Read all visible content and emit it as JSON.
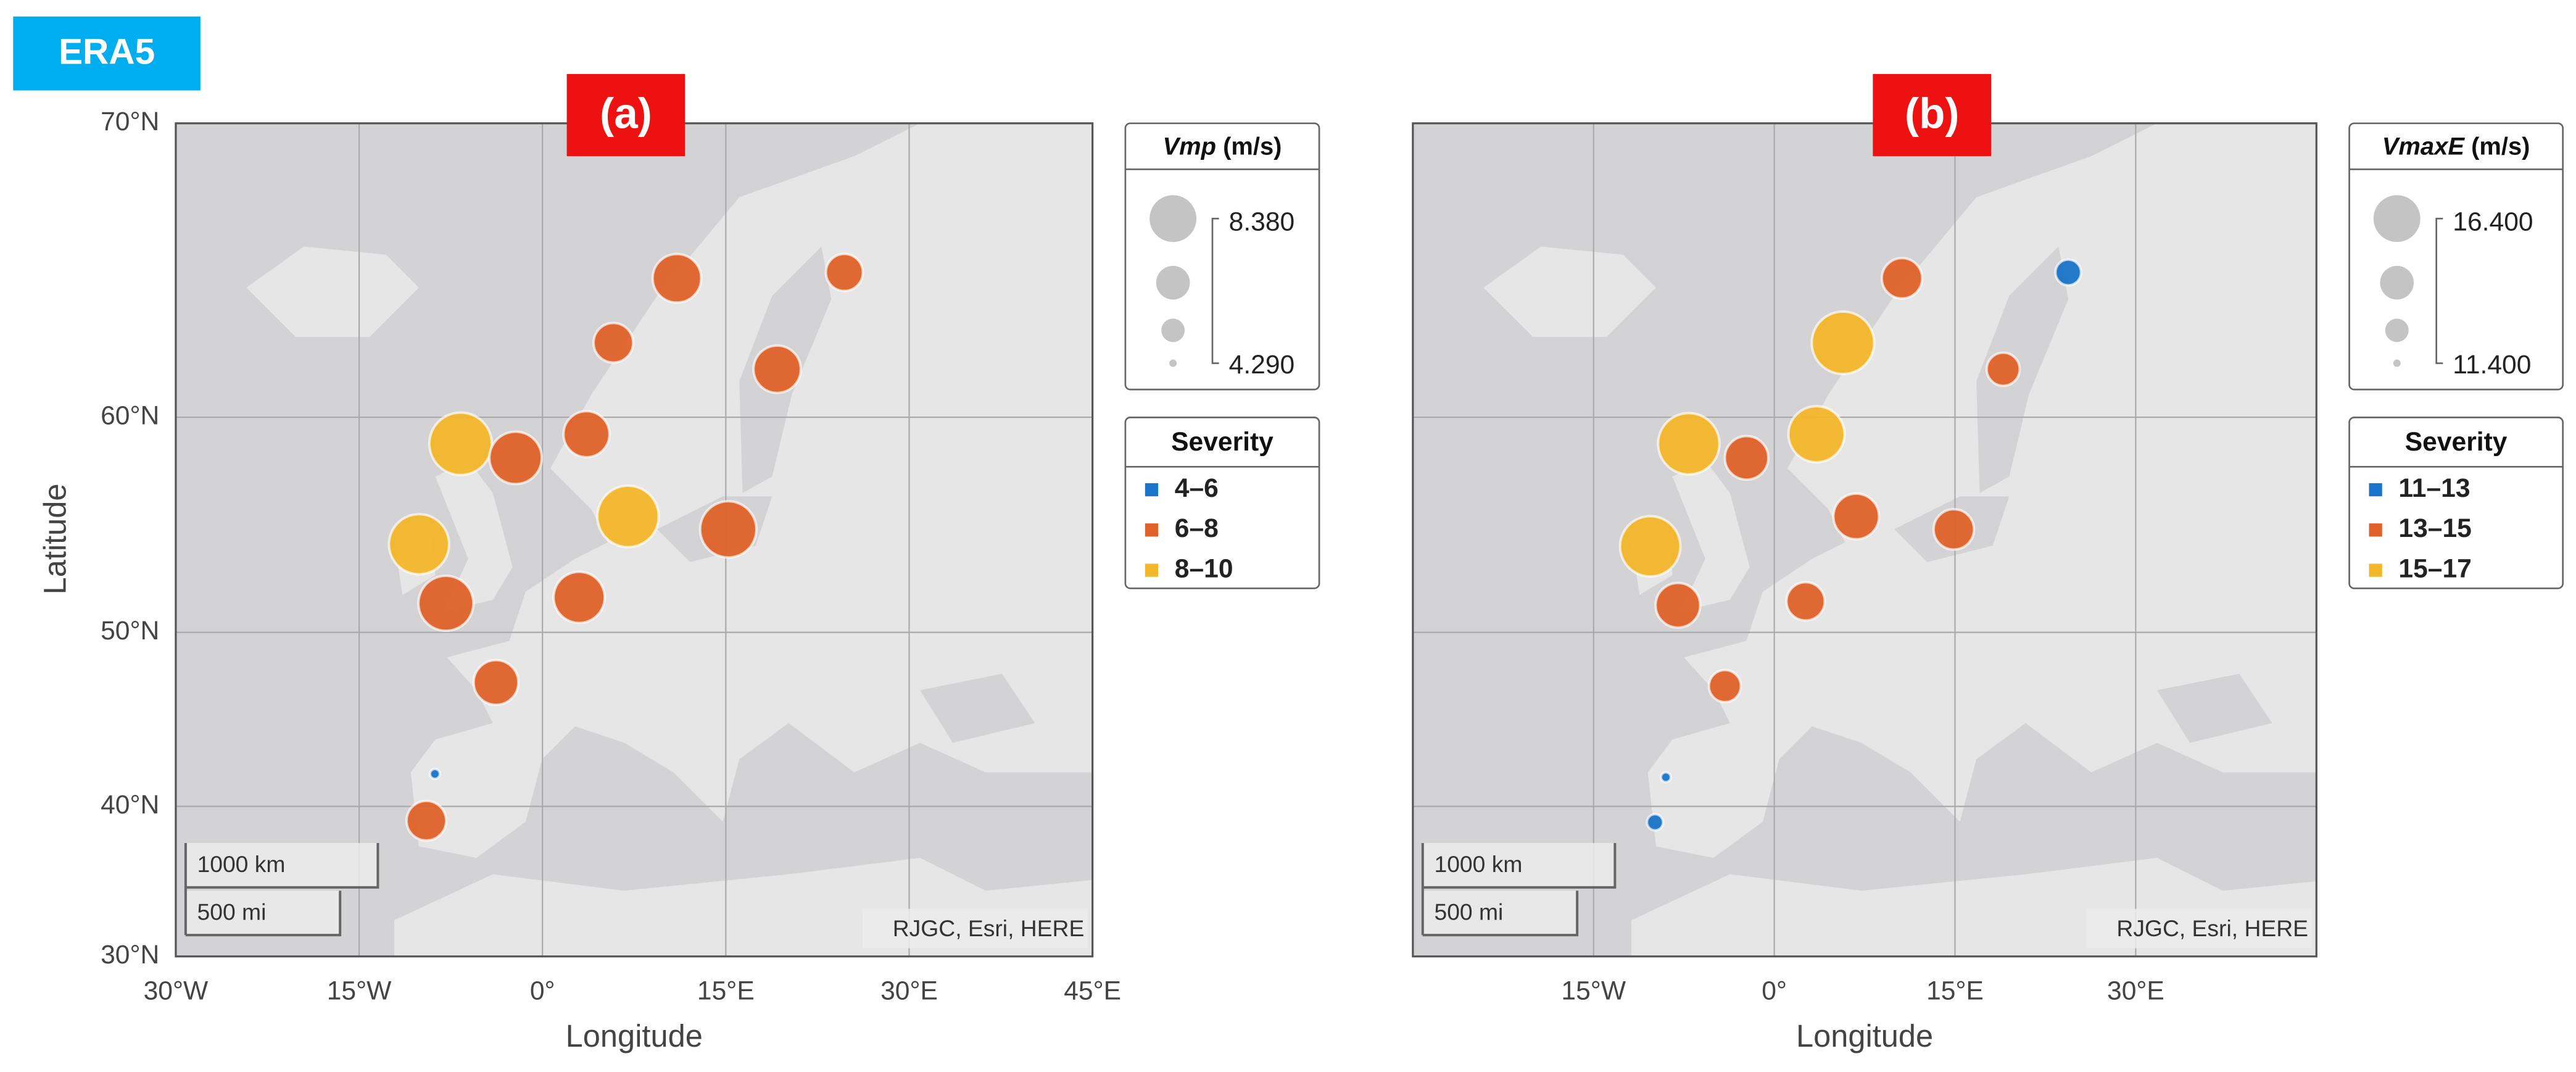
{
  "badge": "ERA5",
  "maps": [
    {
      "panel_label": "(a)",
      "xlabel": "Longitude",
      "ylabel": "Latitude",
      "xlim": [
        -30,
        45
      ],
      "ylim": [
        30,
        70
      ],
      "xticks": [
        {
          "value": -30,
          "label": "30°W"
        },
        {
          "value": -15,
          "label": "15°W"
        },
        {
          "value": 0,
          "label": "0°"
        },
        {
          "value": 15,
          "label": "15°E"
        },
        {
          "value": 30,
          "label": "30°E"
        },
        {
          "value": 45,
          "label": "45°E"
        }
      ],
      "yticks": [
        {
          "value": 30,
          "label": "30°N"
        },
        {
          "value": 40,
          "label": "40°N"
        },
        {
          "value": 50,
          "label": "50°N"
        },
        {
          "value": 60,
          "label": "60°N"
        },
        {
          "value": 70,
          "label": "70°N"
        }
      ],
      "size_legend": {
        "title": "Vmp",
        "unit": "(m/s)",
        "max": 8.38,
        "max_label": "8.380",
        "min": 4.29,
        "min_label": "4.290"
      },
      "severity_legend": {
        "title": "Severity",
        "classes": [
          {
            "label": "4–6",
            "color": "#1a75c8"
          },
          {
            "label": "6–8",
            "color": "#e0622a"
          },
          {
            "label": "8–10",
            "color": "#f4b72b"
          }
        ]
      },
      "points": [
        {
          "lon": 11.0,
          "lat": 65.2,
          "value": 7.3,
          "color": "#e0622a"
        },
        {
          "lon": 24.7,
          "lat": 65.4,
          "value": 6.4,
          "color": "#e0622a"
        },
        {
          "lon": 5.8,
          "lat": 62.9,
          "value": 6.6,
          "color": "#e0622a"
        },
        {
          "lon": 19.2,
          "lat": 61.9,
          "value": 7.2,
          "color": "#e0622a"
        },
        {
          "lon": -6.7,
          "lat": 58.9,
          "value": 8.38,
          "color": "#f4b72b"
        },
        {
          "lon": -2.2,
          "lat": 58.3,
          "value": 7.6,
          "color": "#e0622a"
        },
        {
          "lon": 3.6,
          "lat": 59.3,
          "value": 7.1,
          "color": "#e0622a"
        },
        {
          "lon": 7.0,
          "lat": 55.7,
          "value": 8.3,
          "color": "#f4b72b"
        },
        {
          "lon": 15.2,
          "lat": 55.1,
          "value": 7.9,
          "color": "#e0622a"
        },
        {
          "lon": -10.1,
          "lat": 54.4,
          "value": 8.2,
          "color": "#f4b72b"
        },
        {
          "lon": -7.9,
          "lat": 51.5,
          "value": 7.8,
          "color": "#e0622a"
        },
        {
          "lon": 3.0,
          "lat": 51.8,
          "value": 7.5,
          "color": "#e0622a"
        },
        {
          "lon": -3.8,
          "lat": 47.3,
          "value": 7.0,
          "color": "#e0622a"
        },
        {
          "lon": -8.8,
          "lat": 42.0,
          "value": 4.29,
          "color": "#1a75c8"
        },
        {
          "lon": -9.5,
          "lat": 39.1,
          "value": 6.6,
          "color": "#e0622a"
        }
      ],
      "scale_bar": [
        "1000 km",
        "500 mi"
      ],
      "attribution": "RJGC, Esri, HERE"
    },
    {
      "panel_label": "(b)",
      "xlabel": "Longitude",
      "xlim": [
        -30,
        45
      ],
      "ylim": [
        30,
        70
      ],
      "xticks": [
        {
          "value": -15,
          "label": "15°W"
        },
        {
          "value": 0,
          "label": "0°"
        },
        {
          "value": 15,
          "label": "15°E"
        },
        {
          "value": 30,
          "label": "30°E"
        }
      ],
      "yticks": [
        30,
        40,
        50,
        60,
        70
      ],
      "size_legend": {
        "title": "VmaxE",
        "unit": "(m/s)",
        "max": 16.4,
        "max_label": "16.400",
        "min": 11.4,
        "min_label": "11.400"
      },
      "severity_legend": {
        "title": "Severity",
        "classes": [
          {
            "label": "11–13",
            "color": "#1a75c8"
          },
          {
            "label": "13–15",
            "color": "#e0622a"
          },
          {
            "label": "15–17",
            "color": "#f4b72b"
          }
        ]
      },
      "points": [
        {
          "lon": 10.6,
          "lat": 65.2,
          "value": 14.3,
          "color": "#e0622a"
        },
        {
          "lon": 24.4,
          "lat": 65.4,
          "value": 12.9,
          "color": "#1a75c8"
        },
        {
          "lon": 5.7,
          "lat": 62.9,
          "value": 16.4,
          "color": "#f4b72b"
        },
        {
          "lon": 19.0,
          "lat": 61.9,
          "value": 13.6,
          "color": "#e0622a"
        },
        {
          "lon": -7.1,
          "lat": 58.9,
          "value": 16.3,
          "color": "#f4b72b"
        },
        {
          "lon": -2.3,
          "lat": 58.3,
          "value": 14.6,
          "color": "#e0622a"
        },
        {
          "lon": 3.5,
          "lat": 59.3,
          "value": 15.8,
          "color": "#f4b72b"
        },
        {
          "lon": 6.8,
          "lat": 55.7,
          "value": 14.8,
          "color": "#e0622a"
        },
        {
          "lon": 14.9,
          "lat": 55.1,
          "value": 14.3,
          "color": "#e0622a"
        },
        {
          "lon": -10.3,
          "lat": 54.3,
          "value": 16.2,
          "color": "#f4b72b"
        },
        {
          "lon": -8.0,
          "lat": 51.4,
          "value": 14.7,
          "color": "#e0622a"
        },
        {
          "lon": 2.6,
          "lat": 51.6,
          "value": 14.1,
          "color": "#e0622a"
        },
        {
          "lon": -4.1,
          "lat": 47.1,
          "value": 13.5,
          "color": "#e0622a"
        },
        {
          "lon": -9.0,
          "lat": 41.8,
          "value": 11.4,
          "color": "#1a75c8"
        },
        {
          "lon": -9.9,
          "lat": 39.0,
          "value": 12.0,
          "color": "#1a75c8"
        }
      ],
      "scale_bar": [
        "1000 km",
        "500 mi"
      ],
      "attribution": "RJGC, Esri, HERE"
    }
  ]
}
